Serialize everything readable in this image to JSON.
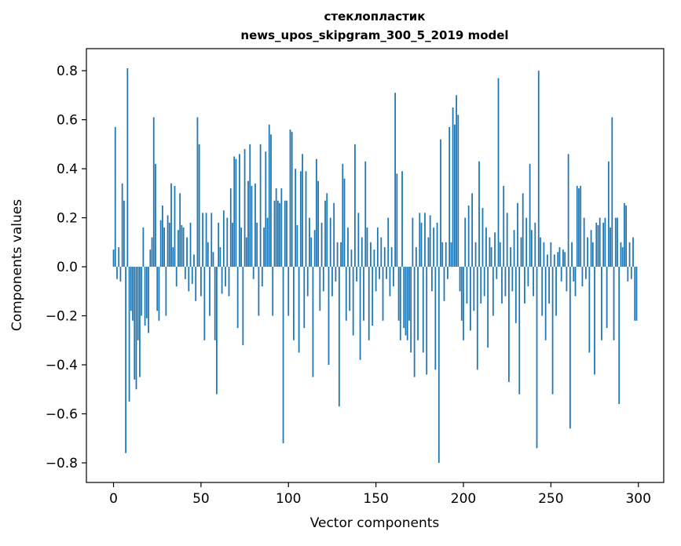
{
  "chart_data": {
    "type": "bar",
    "title_line1": "стеклопластик",
    "title_line2": "news_upos_skipgram_300_5_2019 model",
    "xlabel": "Vector components",
    "ylabel": "Components values",
    "x_ticks": [
      0,
      50,
      100,
      150,
      200,
      250,
      300
    ],
    "y_ticks": [
      -0.8,
      -0.6,
      -0.4,
      -0.2,
      0.0,
      0.2,
      0.4,
      0.6,
      0.8
    ],
    "xlim": [
      -15.5,
      314.5
    ],
    "ylim": [
      -0.88,
      0.89
    ],
    "bar_color": "#1f77b4",
    "grid": false,
    "legend": "none",
    "n_components": 300,
    "values": [
      0.07,
      0.57,
      -0.05,
      0.08,
      -0.06,
      0.34,
      0.27,
      -0.76,
      0.81,
      -0.55,
      -0.18,
      -0.22,
      -0.46,
      -0.5,
      -0.3,
      -0.45,
      -0.2,
      0.16,
      -0.24,
      -0.21,
      -0.27,
      0.07,
      0.12,
      0.61,
      0.42,
      -0.18,
      -0.22,
      0.19,
      0.25,
      0.16,
      -0.2,
      0.21,
      0.18,
      0.34,
      0.08,
      0.33,
      -0.08,
      0.15,
      0.3,
      0.17,
      0.16,
      -0.05,
      0.12,
      -0.1,
      0.18,
      -0.07,
      0.05,
      -0.14,
      0.61,
      0.5,
      -0.12,
      0.22,
      -0.3,
      0.22,
      0.1,
      -0.2,
      0.22,
      0.06,
      -0.3,
      -0.52,
      0.18,
      0.08,
      -0.11,
      0.23,
      -0.08,
      0.2,
      -0.12,
      0.32,
      0.18,
      0.45,
      0.44,
      -0.25,
      0.46,
      0.16,
      -0.32,
      0.48,
      0.12,
      0.35,
      0.5,
      0.33,
      -0.05,
      0.34,
      0.18,
      -0.2,
      0.5,
      -0.08,
      0.16,
      0.47,
      0.2,
      0.58,
      0.54,
      -0.2,
      0.27,
      0.32,
      0.27,
      0.26,
      0.32,
      -0.72,
      0.27,
      0.27,
      -0.2,
      0.56,
      0.55,
      -0.3,
      0.4,
      0.17,
      -0.35,
      0.39,
      0.46,
      -0.25,
      0.39,
      -0.12,
      0.2,
      0.12,
      -0.45,
      0.15,
      0.44,
      0.35,
      -0.18,
      0.18,
      -0.1,
      0.27,
      0.3,
      -0.4,
      0.2,
      -0.12,
      0.26,
      -0.06,
      0.1,
      -0.57,
      0.1,
      0.42,
      0.36,
      -0.22,
      0.16,
      -0.18,
      0.07,
      -0.28,
      0.5,
      -0.06,
      0.22,
      -0.38,
      0.12,
      -0.22,
      0.43,
      0.16,
      -0.3,
      0.1,
      -0.24,
      0.07,
      -0.1,
      0.16,
      -0.05,
      0.12,
      -0.22,
      0.08,
      -0.05,
      0.2,
      -0.12,
      0.08,
      -0.08,
      0.71,
      0.38,
      -0.22,
      -0.3,
      0.39,
      -0.25,
      -0.28,
      -0.3,
      -0.22,
      -0.35,
      0.2,
      -0.45,
      0.08,
      -0.3,
      0.22,
      0.18,
      -0.35,
      0.22,
      -0.44,
      0.12,
      0.21,
      -0.1,
      0.16,
      -0.42,
      0.18,
      -0.8,
      0.52,
      0.1,
      -0.14,
      0.1,
      -0.05,
      0.57,
      0.1,
      0.65,
      0.58,
      0.7,
      0.62,
      -0.1,
      -0.22,
      -0.3,
      0.2,
      -0.15,
      0.25,
      -0.26,
      0.3,
      -0.18,
      0.1,
      -0.42,
      0.43,
      -0.15,
      0.24,
      -0.12,
      0.16,
      -0.33,
      0.12,
      0.08,
      -0.2,
      0.14,
      -0.05,
      0.77,
      0.1,
      -0.15,
      0.33,
      -0.12,
      0.22,
      -0.47,
      0.08,
      -0.1,
      0.15,
      -0.23,
      0.26,
      -0.52,
      0.12,
      0.3,
      -0.15,
      0.2,
      -0.08,
      0.42,
      0.15,
      -0.12,
      0.18,
      -0.74,
      0.8,
      0.12,
      -0.2,
      0.1,
      -0.3,
      0.05,
      -0.15,
      0.1,
      -0.52,
      0.05,
      -0.2,
      0.06,
      0.08,
      -0.06,
      0.07,
      0.06,
      -0.1,
      0.46,
      -0.66,
      0.1,
      -0.06,
      -0.12,
      0.33,
      0.32,
      0.33,
      -0.08,
      0.2,
      -0.05,
      0.12,
      -0.35,
      0.15,
      0.1,
      -0.44,
      0.18,
      0.17,
      0.2,
      -0.3,
      0.18,
      0.2,
      -0.25,
      0.43,
      0.16,
      0.61,
      -0.3,
      0.2,
      0.2,
      -0.56,
      0.1,
      0.08,
      0.26,
      0.25,
      -0.06,
      0.1,
      -0.05,
      0.12,
      -0.22,
      -0.22
    ]
  }
}
